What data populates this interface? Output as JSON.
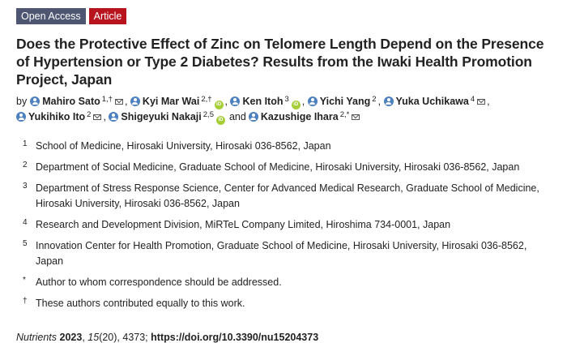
{
  "badges": {
    "open_access": "Open Access",
    "article": "Article"
  },
  "title": "Does the Protective Effect of Zinc on Telomere Length Depend on the Presence of Hypertension or Type 2 Diabetes? Results from the Iwaki Health Promotion Project, Japan",
  "by_label": "by",
  "and_label": "and",
  "authors": [
    {
      "name": "Mahiro Sato",
      "sup": "1,†",
      "email": true,
      "orcid": false
    },
    {
      "name": "Kyi Mar Wai",
      "sup": "2,†",
      "email": false,
      "orcid": true
    },
    {
      "name": "Ken Itoh",
      "sup": "3",
      "email": false,
      "orcid": true
    },
    {
      "name": "Yichi Yang",
      "sup": "2",
      "email": false,
      "orcid": false
    },
    {
      "name": "Yuka Uchikawa",
      "sup": "4",
      "email": true,
      "orcid": false
    },
    {
      "name": "Yukihiko Ito",
      "sup": "2",
      "email": true,
      "orcid": false
    },
    {
      "name": "Shigeyuki Nakaji",
      "sup": "2,5",
      "email": false,
      "orcid": true
    },
    {
      "name": "Kazushige Ihara",
      "sup": "2,*",
      "email": true,
      "orcid": false
    }
  ],
  "affiliations": [
    {
      "mark": "1",
      "text": "School of Medicine, Hirosaki University, Hirosaki 036-8562, Japan"
    },
    {
      "mark": "2",
      "text": "Department of Social Medicine, Graduate School of Medicine, Hirosaki University, Hirosaki 036-8562, Japan"
    },
    {
      "mark": "3",
      "text": "Department of Stress Response Science, Center for Advanced Medical Research, Graduate School of Medicine, Hirosaki University, Hirosaki 036-8562, Japan"
    },
    {
      "mark": "4",
      "text": "Research and Development Division, MiRTeL Company Limited, Hiroshima 734-0001, Japan"
    },
    {
      "mark": "5",
      "text": "Innovation Center for Health Promotion, Graduate School of Medicine, Hirosaki University, Hirosaki 036-8562, Japan"
    },
    {
      "mark": "*",
      "text": "Author to whom correspondence should be addressed."
    },
    {
      "mark": "†",
      "text": "These authors contributed equally to this work."
    }
  ],
  "citation": {
    "journal": "Nutrients",
    "year": "2023",
    "volume": "15",
    "issue_pages": "(20), 4373;",
    "doi": "https://doi.org/10.3390/nu15204373"
  }
}
